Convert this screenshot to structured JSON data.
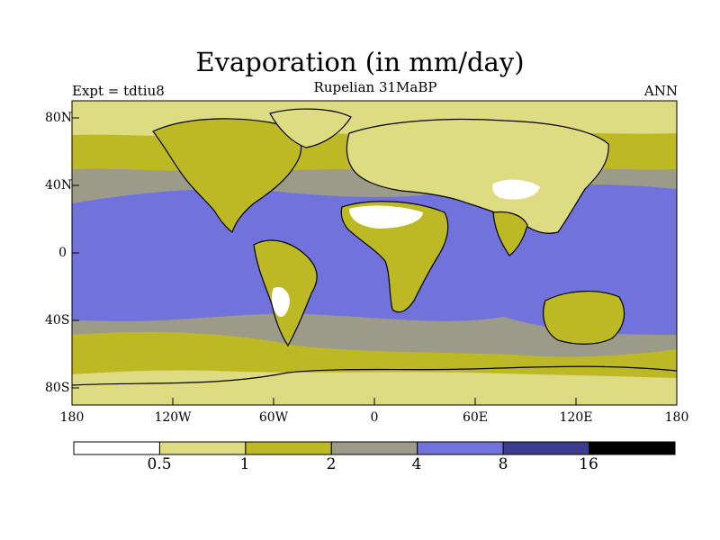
{
  "title": "Evaporation (in mm/day)",
  "subtitle": "Rupelian  31MaBP",
  "experiment_label": "Expt = tdtiu8",
  "season_label": "ANN",
  "lat_ticks": [
    "80N",
    "40N",
    "0",
    "40S",
    "80S"
  ],
  "lon_ticks": [
    "180",
    "120W",
    "60W",
    "0",
    "60E",
    "120E",
    "180"
  ],
  "colorbar": {
    "colors": [
      "#ffffff",
      "#dedc82",
      "#bcb925",
      "#9c9b8a",
      "#7272dd",
      "#3c3c8c",
      "#000000"
    ],
    "labels": [
      "0.5",
      "1",
      "2",
      "4",
      "8",
      "16"
    ]
  },
  "palette": {
    "land_low": "#dedc82",
    "land_mid": "#bcb925",
    "mid_lat": "#9c9b8a",
    "ocean_high": "#7272dd",
    "desert": "#ffffff"
  }
}
